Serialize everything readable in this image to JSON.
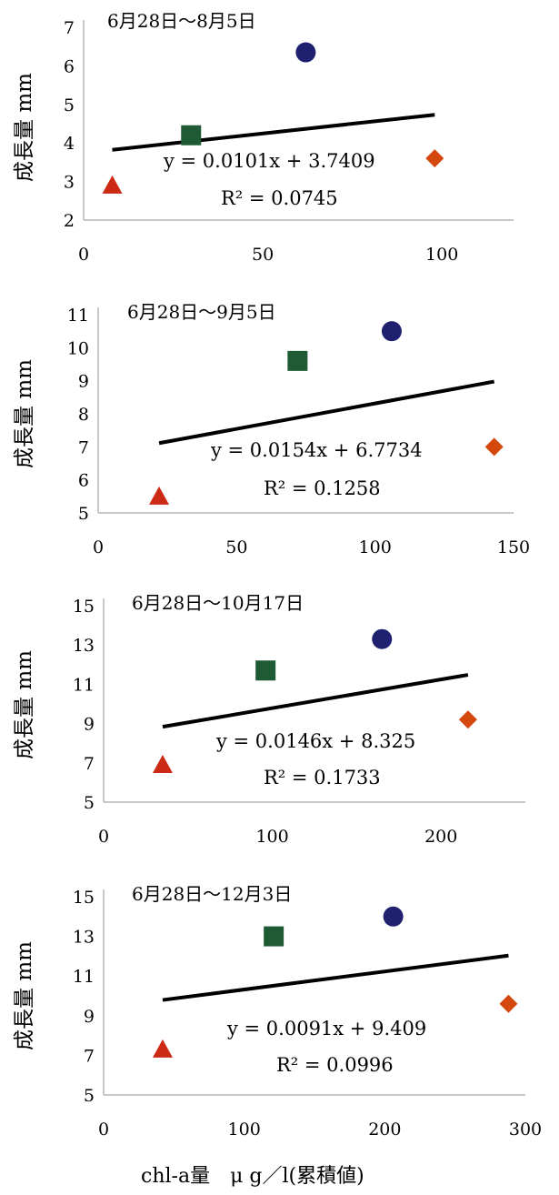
{
  "colors": {
    "circle": "#1f2070",
    "square": "#1e5a34",
    "triangle": "#cc2a14",
    "diamond": "#d4480e",
    "trendline": "#000000",
    "axis": "#b5b5b5"
  },
  "x_axis_label": "chl-a量　μ g／l(累積値)",
  "chart_data": [
    {
      "type": "scatter",
      "title": "6月28日～8月5日",
      "ylabel": "成長量 mm",
      "xlim": [
        0,
        120
      ],
      "ylim": [
        2,
        7
      ],
      "xticks": [
        0,
        50,
        100
      ],
      "yticks": [
        2,
        3,
        4,
        5,
        6,
        7
      ],
      "points": [
        {
          "marker": "triangle",
          "x": 8,
          "y": 2.9
        },
        {
          "marker": "square",
          "x": 30,
          "y": 4.2
        },
        {
          "marker": "circle",
          "x": 62,
          "y": 6.35
        },
        {
          "marker": "diamond",
          "x": 98,
          "y": 3.6
        }
      ],
      "trendline": {
        "x1": 8,
        "x2": 98,
        "slope": 0.0101,
        "intercept": 3.7409
      },
      "equation": "y = 0.0101x + 3.7409",
      "r2": "R² = 0.0745"
    },
    {
      "type": "scatter",
      "title": "6月28日～9月5日",
      "ylabel": "成長量 mm",
      "xlim": [
        0,
        150
      ],
      "ylim": [
        5,
        11
      ],
      "xticks": [
        0,
        50,
        100,
        150
      ],
      "yticks": [
        5,
        6,
        7,
        8,
        9,
        10,
        11
      ],
      "points": [
        {
          "marker": "triangle",
          "x": 22,
          "y": 5.5
        },
        {
          "marker": "square",
          "x": 72,
          "y": 9.6
        },
        {
          "marker": "circle",
          "x": 106,
          "y": 10.5
        },
        {
          "marker": "diamond",
          "x": 143,
          "y": 7.0
        }
      ],
      "trendline": {
        "x1": 22,
        "x2": 143,
        "slope": 0.0154,
        "intercept": 6.7734
      },
      "equation": "y = 0.0154x + 6.7734",
      "r2": "R² = 0.1258"
    },
    {
      "type": "scatter",
      "title": "6月28日～10月17日",
      "ylabel": "成長量 mm",
      "xlim": [
        0,
        250
      ],
      "ylim": [
        5,
        15
      ],
      "xticks": [
        0,
        100,
        200
      ],
      "yticks": [
        5,
        7,
        9,
        11,
        13,
        15
      ],
      "points": [
        {
          "marker": "triangle",
          "x": 35,
          "y": 6.9
        },
        {
          "marker": "square",
          "x": 96,
          "y": 11.7
        },
        {
          "marker": "circle",
          "x": 165,
          "y": 13.3
        },
        {
          "marker": "diamond",
          "x": 216,
          "y": 9.2
        }
      ],
      "trendline": {
        "x1": 35,
        "x2": 216,
        "slope": 0.0146,
        "intercept": 8.325
      },
      "equation": "y = 0.0146x + 8.325",
      "r2": "R² = 0.1733"
    },
    {
      "type": "scatter",
      "title": "6月28日～12月3日",
      "ylabel": "成長量 mm",
      "xlim": [
        0,
        300
      ],
      "ylim": [
        5,
        15
      ],
      "xticks": [
        0,
        100,
        200,
        300
      ],
      "yticks": [
        5,
        7,
        9,
        11,
        13,
        15
      ],
      "points": [
        {
          "marker": "triangle",
          "x": 42,
          "y": 7.3
        },
        {
          "marker": "square",
          "x": 121,
          "y": 13.0
        },
        {
          "marker": "circle",
          "x": 206,
          "y": 14.0
        },
        {
          "marker": "diamond",
          "x": 288,
          "y": 9.6
        }
      ],
      "trendline": {
        "x1": 42,
        "x2": 288,
        "slope": 0.0091,
        "intercept": 9.409
      },
      "equation": "y = 0.0091x + 9.409",
      "r2": "R² = 0.0996"
    }
  ]
}
